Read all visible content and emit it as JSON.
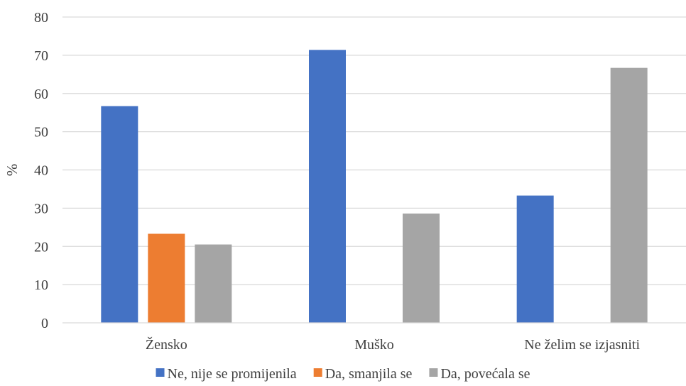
{
  "chart_data": {
    "type": "bar",
    "categories": [
      "Žensko",
      "Muško",
      "Ne želim se izjasniti"
    ],
    "series": [
      {
        "name": "Ne, nije se promijenila",
        "color": "#4472C4",
        "values": [
          56.7,
          71.4,
          33.3
        ]
      },
      {
        "name": "Da, smanjila se",
        "color": "#ED7D31",
        "values": [
          23.3,
          0,
          0
        ]
      },
      {
        "name": "Da, povećala se",
        "color": "#A5A5A5",
        "values": [
          20.5,
          28.6,
          66.7
        ]
      }
    ],
    "title": "",
    "xlabel": "",
    "ylabel": "%",
    "ylim": [
      0,
      80
    ],
    "yticks": [
      0,
      10,
      20,
      30,
      40,
      50,
      60,
      70,
      80
    ],
    "grid": true,
    "legend_position": "bottom"
  }
}
